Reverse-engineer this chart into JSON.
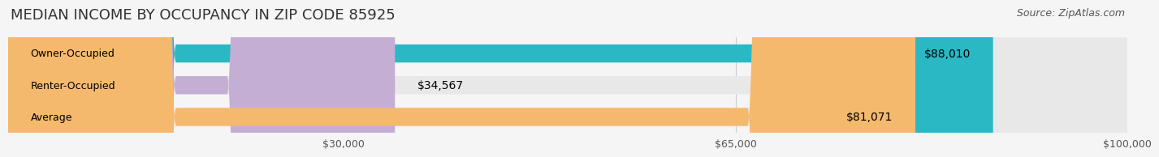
{
  "title": "MEDIAN INCOME BY OCCUPANCY IN ZIP CODE 85925",
  "source_text": "Source: ZipAtlas.com",
  "categories": [
    "Owner-Occupied",
    "Renter-Occupied",
    "Average"
  ],
  "values": [
    88010,
    34567,
    81071
  ],
  "labels": [
    "$88,010",
    "$34,567",
    "$81,071"
  ],
  "bar_colors": [
    "#2ab8c5",
    "#c4aed4",
    "#f5b96e"
  ],
  "x_max": 100000,
  "x_ticks": [
    30000,
    65000,
    100000
  ],
  "x_tick_labels": [
    "$30,000",
    "$65,000",
    "$100,000"
  ],
  "background_color": "#f5f5f5",
  "bar_bg_color": "#e8e8e8",
  "title_fontsize": 13,
  "source_fontsize": 9,
  "label_fontsize": 10,
  "category_fontsize": 9,
  "tick_fontsize": 9
}
